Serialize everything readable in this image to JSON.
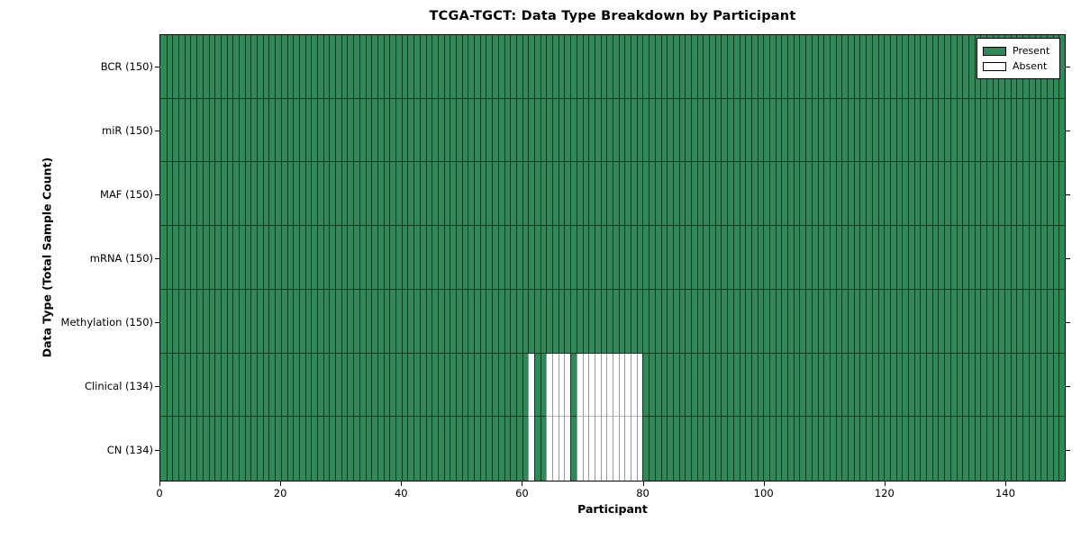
{
  "chart_data": {
    "type": "heatmap",
    "title": "TCGA-TGCT: Data Type Breakdown by Participant",
    "xlabel": "Participant",
    "ylabel": "Data Type (Total Sample Count)",
    "x_range": [
      0,
      150
    ],
    "n_participants": 150,
    "x_ticks": [
      0,
      20,
      40,
      60,
      80,
      100,
      120,
      140
    ],
    "grid": "cell-borders",
    "legend_position": "upper-right",
    "rows": [
      {
        "label": "BCR (150)",
        "data_type": "BCR",
        "present_count": 150,
        "absent_participants": []
      },
      {
        "label": "miR (150)",
        "data_type": "miR",
        "present_count": 150,
        "absent_participants": []
      },
      {
        "label": "MAF (150)",
        "data_type": "MAF",
        "present_count": 150,
        "absent_participants": []
      },
      {
        "label": "mRNA (150)",
        "data_type": "mRNA",
        "present_count": 150,
        "absent_participants": []
      },
      {
        "label": "Methylation (150)",
        "data_type": "Methylation",
        "present_count": 150,
        "absent_participants": []
      },
      {
        "label": "Clinical (134)",
        "data_type": "Clinical",
        "present_count": 134,
        "absent_participants": [
          61,
          64,
          65,
          66,
          67,
          69,
          70,
          71,
          72,
          73,
          74,
          75,
          76,
          77,
          78,
          79
        ]
      },
      {
        "label": "CN (134)",
        "data_type": "CN",
        "present_count": 134,
        "absent_participants": [
          61,
          64,
          65,
          66,
          67,
          69,
          70,
          71,
          72,
          73,
          74,
          75,
          76,
          77,
          78,
          79
        ]
      }
    ],
    "legend": [
      {
        "label": "Present",
        "color": "#2e8b57"
      },
      {
        "label": "Absent",
        "color": "#ffffff"
      }
    ],
    "colors": {
      "present": "#2e8b57",
      "absent": "#ffffff",
      "cell_edge": "#000000"
    }
  }
}
